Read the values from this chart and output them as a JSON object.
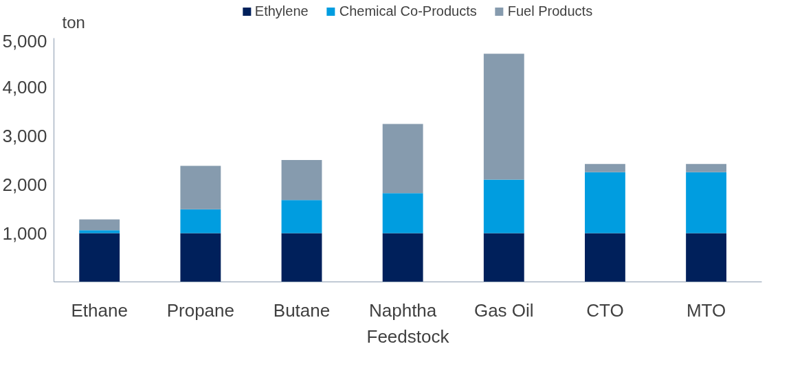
{
  "chart_data": {
    "type": "bar",
    "stacked": true,
    "ylabel": "ton",
    "xlabel": "Feedstock",
    "categories": [
      "Ethane",
      "Propane",
      "Butane",
      "Naphtha",
      "Gas Oil",
      "CTO",
      "MTO"
    ],
    "series": [
      {
        "name": "Ethylene",
        "color": "#00205b",
        "values": [
          1000,
          1000,
          1000,
          1000,
          1000,
          1000,
          1000
        ]
      },
      {
        "name": "Chemical Co-Products",
        "color": "#009de0",
        "values": [
          60,
          490,
          680,
          820,
          1100,
          1250,
          1250
        ]
      },
      {
        "name": "Fuel Products",
        "color": "#869bae",
        "values": [
          220,
          890,
          820,
          1420,
          2580,
          170,
          170
        ]
      }
    ],
    "ylim": [
      0,
      5000
    ],
    "yticks": [
      {
        "value": 1000,
        "label": "1,000"
      },
      {
        "value": 2000,
        "label": "2,000"
      },
      {
        "value": 3000,
        "label": "3,000"
      },
      {
        "value": 4000,
        "label": "4,000"
      },
      {
        "value": 5000,
        "label": "5,000"
      }
    ],
    "grid": false,
    "legend": "top"
  }
}
